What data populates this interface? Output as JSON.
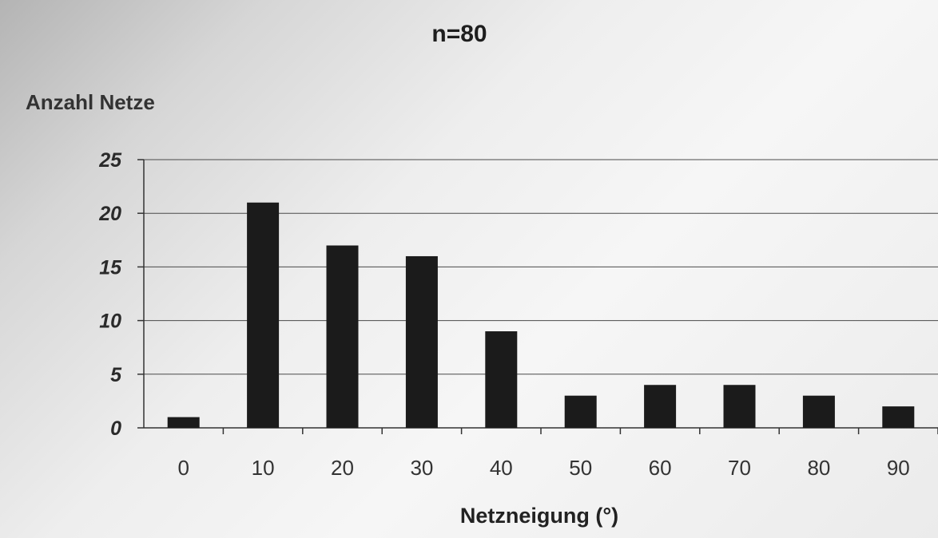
{
  "chart_data": {
    "type": "bar",
    "title": "n=80",
    "ylabel": "Anzahl Netze",
    "xlabel": "Netzneigung (°)",
    "categories": [
      "0",
      "10",
      "20",
      "30",
      "40",
      "50",
      "60",
      "70",
      "80",
      "90"
    ],
    "values": [
      1,
      21,
      17,
      16,
      9,
      3,
      4,
      4,
      3,
      2
    ],
    "yticks": [
      "0",
      "5",
      "10",
      "15",
      "20",
      "25"
    ],
    "ylim": [
      0,
      25
    ],
    "grid": true,
    "legend": "none",
    "bar_color": "#1b1b1b"
  }
}
